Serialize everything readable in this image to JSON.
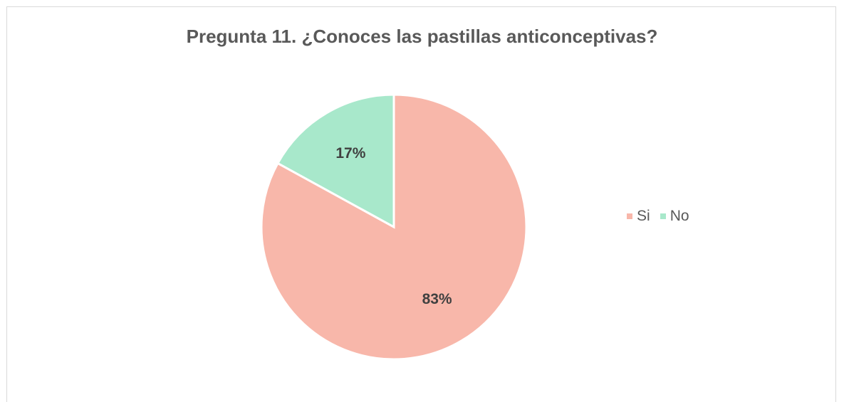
{
  "chart_data": {
    "type": "pie",
    "title": "Pregunta 11. ¿Conoces las pastillas anticonceptivas?",
    "categories": [
      "Si",
      "No"
    ],
    "values": [
      83,
      17
    ],
    "labels": [
      "83%",
      "17%"
    ],
    "colors": [
      "#F8B7AA",
      "#A8E8CB"
    ],
    "legend_position": "right",
    "start_angle": "top, clockwise"
  }
}
